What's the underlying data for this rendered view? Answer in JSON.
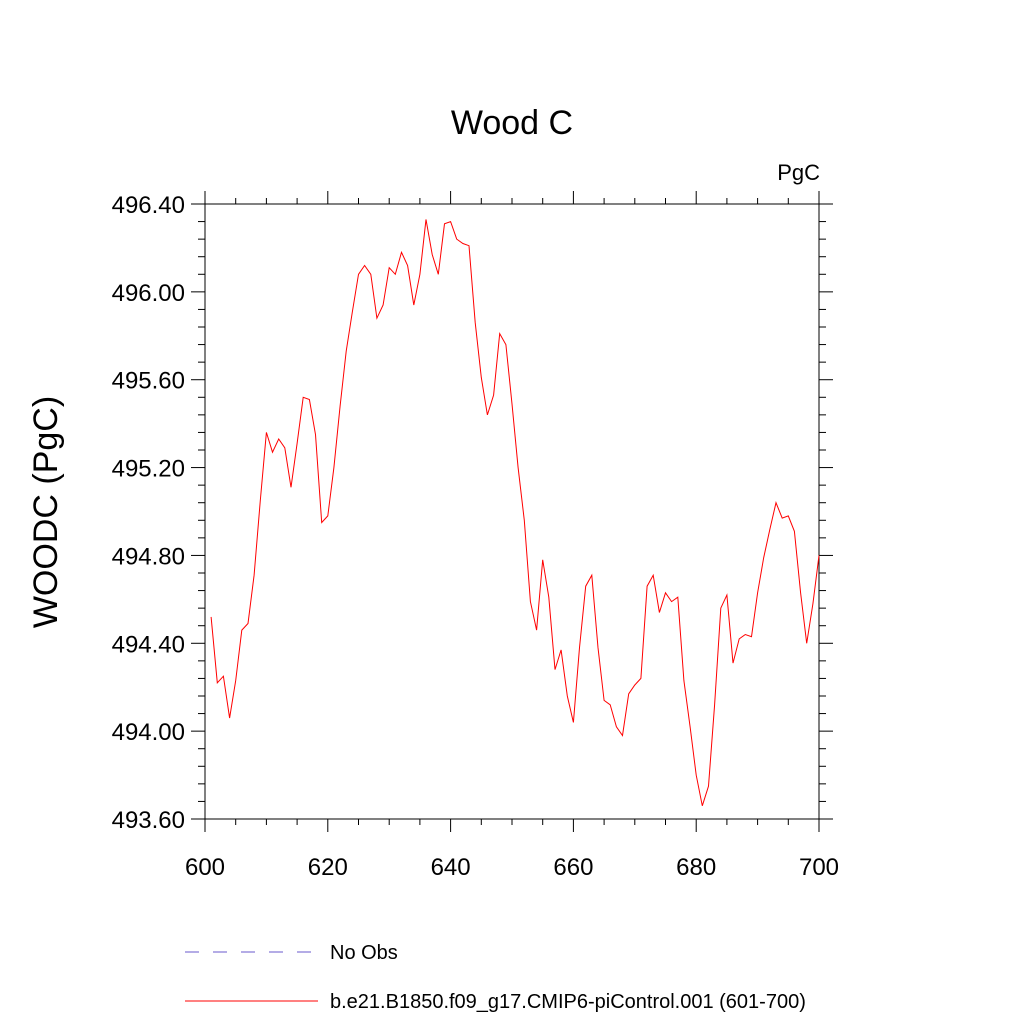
{
  "chart_data": {
    "type": "line",
    "title": "Wood C",
    "units_label": "PgC",
    "ylabel": "WOODC  (PgC)",
    "xlabel": "",
    "xlim": [
      600,
      700
    ],
    "ylim": [
      493.6,
      496.4
    ],
    "x_ticks": [
      600,
      620,
      640,
      660,
      680,
      700
    ],
    "x_tick_labels": [
      "600",
      "620",
      "640",
      "660",
      "680",
      "700"
    ],
    "y_ticks": [
      493.6,
      494.0,
      494.4,
      494.8,
      495.2,
      495.6,
      496.0,
      496.4
    ],
    "y_tick_labels": [
      "493.60",
      "494.00",
      "494.40",
      "494.80",
      "495.20",
      "495.60",
      "496.00",
      "496.40"
    ],
    "grid": false,
    "legend_placement": "bottom",
    "series": [
      {
        "name": "No Obs",
        "color": "#6a5acd",
        "style": "dashed",
        "x": [],
        "y": []
      },
      {
        "name": "b.e21.B1850.f09_g17.CMIP6-piControl.001 (601-700)",
        "color": "#ff0000",
        "style": "solid",
        "x": [
          601,
          602,
          603,
          604,
          605,
          606,
          607,
          608,
          609,
          610,
          611,
          612,
          613,
          614,
          615,
          616,
          617,
          618,
          619,
          620,
          621,
          622,
          623,
          624,
          625,
          626,
          627,
          628,
          629,
          630,
          631,
          632,
          633,
          634,
          635,
          636,
          637,
          638,
          639,
          640,
          641,
          642,
          643,
          644,
          645,
          646,
          647,
          648,
          649,
          650,
          651,
          652,
          653,
          654,
          655,
          656,
          657,
          658,
          659,
          660,
          661,
          662,
          663,
          664,
          665,
          666,
          667,
          668,
          669,
          670,
          671,
          672,
          673,
          674,
          675,
          676,
          677,
          678,
          679,
          680,
          681,
          682,
          683,
          684,
          685,
          686,
          687,
          688,
          689,
          690,
          691,
          692,
          693,
          694,
          695,
          696,
          697,
          698,
          699,
          700
        ],
        "y": [
          494.52,
          494.22,
          494.25,
          494.06,
          494.23,
          494.46,
          494.49,
          494.71,
          495.05,
          495.36,
          495.27,
          495.33,
          495.29,
          495.11,
          495.31,
          495.52,
          495.51,
          495.35,
          494.95,
          494.98,
          495.2,
          495.48,
          495.73,
          495.91,
          496.08,
          496.12,
          496.08,
          495.88,
          495.94,
          496.11,
          496.08,
          496.18,
          496.12,
          495.94,
          496.08,
          496.33,
          496.17,
          496.08,
          496.31,
          496.32,
          496.24,
          496.22,
          496.21,
          495.86,
          495.61,
          495.44,
          495.53,
          495.81,
          495.76,
          495.49,
          495.2,
          494.96,
          494.59,
          494.46,
          494.78,
          494.61,
          494.28,
          494.37,
          494.16,
          494.04,
          494.38,
          494.66,
          494.71,
          494.38,
          494.14,
          494.12,
          494.02,
          493.98,
          494.17,
          494.21,
          494.24,
          494.66,
          494.71,
          494.54,
          494.63,
          494.59,
          494.61,
          494.23,
          494.02,
          493.8,
          493.66,
          493.75,
          494.12,
          494.56,
          494.62,
          494.31,
          494.42,
          494.44,
          494.43,
          494.63,
          494.79,
          494.92,
          495.04,
          494.97,
          494.98,
          494.91,
          494.63,
          494.4,
          494.58,
          494.8
        ]
      }
    ]
  }
}
